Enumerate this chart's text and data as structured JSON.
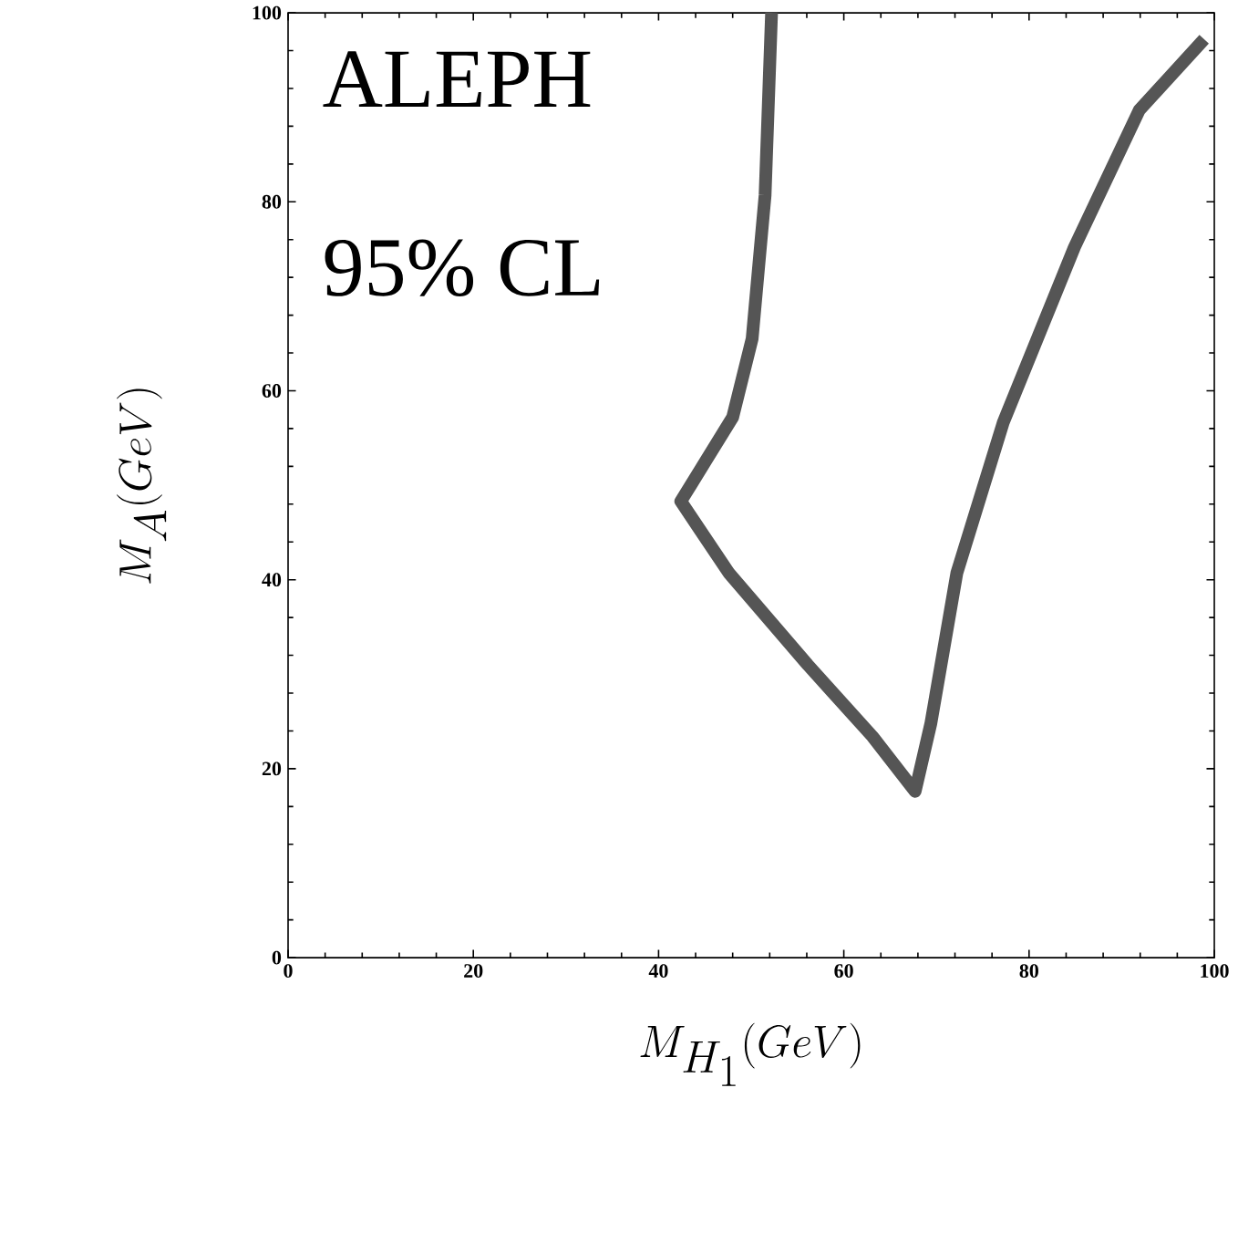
{
  "chart_data": {
    "type": "line",
    "xlabel": "M_{H_1}(GeV)",
    "ylabel": "M_A(GeV)",
    "annotations": [
      "ALEPH",
      "95% CL"
    ],
    "xlim": [
      0,
      100
    ],
    "ylim": [
      0,
      100
    ],
    "xticks": [
      0,
      20,
      40,
      60,
      80,
      100
    ],
    "yticks": [
      0,
      20,
      40,
      60,
      80,
      100
    ],
    "series": [
      {
        "color": "#555555",
        "x": [
          52.2,
          51.5,
          50.1,
          48,
          42.4,
          47.6,
          56.1,
          63.1,
          67.7,
          69.4,
          72.2,
          77.2,
          84.9,
          91.9,
          98.9
        ],
        "values": [
          100,
          80.7,
          65.5,
          57.2,
          48.3,
          40.7,
          31,
          23.4,
          17.6,
          24.8,
          40.7,
          56.6,
          75.2,
          89.7,
          97.2
        ]
      }
    ]
  }
}
